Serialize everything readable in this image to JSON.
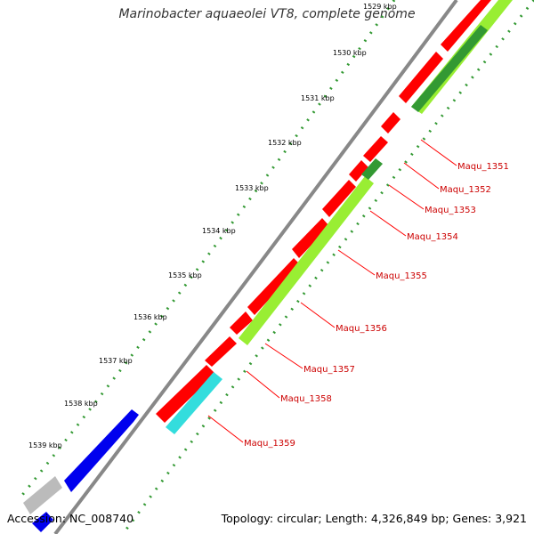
{
  "title": "Marinobacter aquaeolei VT8, complete genome",
  "footer": {
    "accession": "Accession: NC_008740",
    "summary": "Topology: circular; Length: 4,326,849 bp; Genes: 3,921"
  },
  "ticks": [
    "1529 kbp",
    "1530 kbp",
    "1531 kbp",
    "1532 kbp",
    "1533 kbp",
    "1534 kbp",
    "1535 kbp",
    "1536 kbp",
    "1537 kbp",
    "1538 kbp",
    "1539 kbp"
  ],
  "gene_labels": [
    "Maqu_1351",
    "Maqu_1352",
    "Maqu_1353",
    "Maqu_1354",
    "Maqu_1355",
    "Maqu_1356",
    "Maqu_1357",
    "Maqu_1358",
    "Maqu_1359"
  ],
  "colors": {
    "reverse_strand": "#ff0000",
    "forward_strand": "#0000ff",
    "feature_lime": "#99ee33",
    "feature_green": "#339933",
    "feature_cyan": "#33dddd",
    "feature_gray": "#bbbbbb",
    "backbone": "#888888",
    "tick_marks": "#339933",
    "label_lines": "#ff0000"
  }
}
